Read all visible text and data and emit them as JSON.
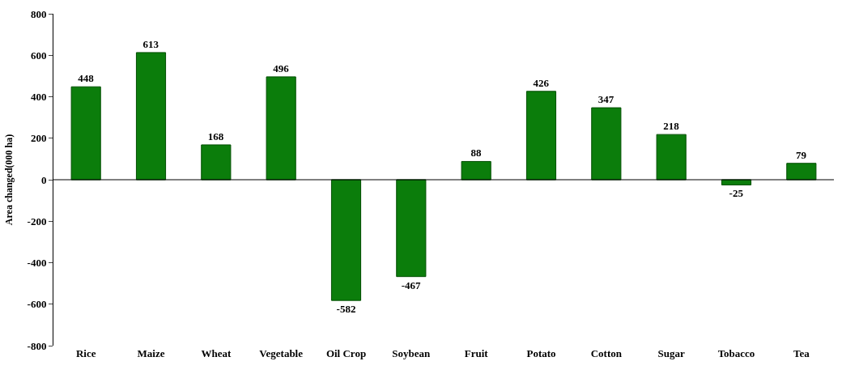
{
  "chart_data": {
    "type": "bar",
    "ylabel": "Area changed(000 ha)",
    "categories": [
      "Rice",
      "Maize",
      "Wheat",
      "Vegetable",
      "Oil Crop",
      "Soybean",
      "Fruit",
      "Potato",
      "Cotton",
      "Sugar",
      "Tobacco",
      "Tea"
    ],
    "values": [
      448,
      613,
      168,
      496,
      -582,
      -467,
      88,
      426,
      347,
      218,
      -25,
      79
    ],
    "color": "#0b7d0b",
    "ylim": [
      -800,
      800
    ],
    "yticks": [
      -800,
      -600,
      -400,
      -200,
      0,
      200,
      400,
      600,
      800
    ],
    "grid": false,
    "ref_lines": [
      {
        "axis": "y",
        "value": 0,
        "color": "#000000"
      }
    ],
    "legend": false,
    "data_labels": true
  }
}
